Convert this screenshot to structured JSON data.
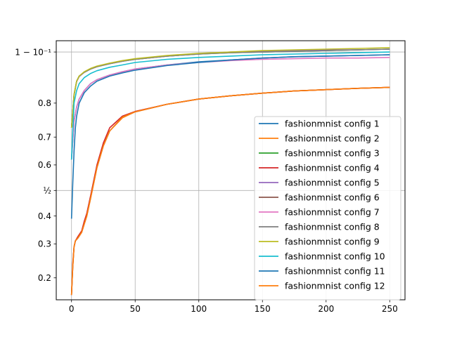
{
  "chart_data": {
    "type": "line",
    "title": "",
    "xlabel": "",
    "ylabel": "",
    "xlim": [
      -12,
      262
    ],
    "ylim": [
      0.15,
      0.915
    ],
    "y_scale": "logit",
    "grid": true,
    "legend_placement": "lower-right",
    "x_ticks": [
      0,
      50,
      100,
      150,
      200,
      250
    ],
    "x_tick_labels": [
      "0",
      "50",
      "100",
      "150",
      "200",
      "250"
    ],
    "y_ticks": [
      0.2,
      0.3,
      0.4,
      0.5,
      0.6,
      0.7,
      0.8,
      0.9
    ],
    "y_tick_labels": [
      "0.2",
      "0.3",
      "0.4",
      "½",
      "0.6",
      "0.7",
      "0.8",
      "1 − 10⁻¹"
    ],
    "y_grid_values": [
      0.5,
      0.9
    ],
    "x_grid_values": [
      0,
      50,
      100,
      150,
      200,
      250
    ],
    "series": [
      {
        "name": "fashionmnist config 1",
        "color": "#1f77b4",
        "x": [
          0,
          2,
          4,
          6,
          10,
          15,
          20,
          30,
          40,
          50,
          75,
          100,
          125,
          150,
          175,
          200,
          225,
          250
        ],
        "y": [
          0.62,
          0.75,
          0.79,
          0.81,
          0.83,
          0.845,
          0.853,
          0.862,
          0.868,
          0.873,
          0.88,
          0.885,
          0.888,
          0.891,
          0.893,
          0.894,
          0.895,
          0.896
        ]
      },
      {
        "name": "fashionmnist config 2",
        "color": "#ff7f0e",
        "x": [
          0,
          1,
          2,
          3,
          5,
          8,
          10,
          12,
          15,
          20,
          25,
          30,
          40,
          50,
          75,
          100,
          125,
          150,
          175,
          200,
          225,
          250
        ],
        "y": [
          0.16,
          0.23,
          0.29,
          0.31,
          0.32,
          0.34,
          0.37,
          0.4,
          0.47,
          0.59,
          0.67,
          0.72,
          0.76,
          0.777,
          0.797,
          0.81,
          0.818,
          0.824,
          0.829,
          0.832,
          0.835,
          0.837
        ]
      },
      {
        "name": "fashionmnist config 3",
        "color": "#2ca02c",
        "x": [
          0,
          2,
          4,
          6,
          10,
          15,
          20,
          30,
          40,
          50,
          75,
          100,
          125,
          150,
          175,
          200,
          225,
          250
        ],
        "y": [
          0.73,
          0.82,
          0.85,
          0.86,
          0.867,
          0.873,
          0.877,
          0.882,
          0.886,
          0.889,
          0.894,
          0.897,
          0.899,
          0.9,
          0.901,
          0.902,
          0.903,
          0.904
        ]
      },
      {
        "name": "fashionmnist config 4",
        "color": "#d62728",
        "x": [
          0,
          1,
          2,
          3,
          5,
          8,
          10,
          12,
          15,
          20,
          25,
          30,
          40,
          50,
          75,
          100,
          125,
          150,
          175,
          200,
          225,
          250
        ],
        "y": [
          0.16,
          0.24,
          0.29,
          0.31,
          0.325,
          0.345,
          0.38,
          0.41,
          0.48,
          0.6,
          0.68,
          0.73,
          0.765,
          0.778,
          0.797,
          0.81,
          0.818,
          0.824,
          0.829,
          0.832,
          0.835,
          0.837
        ]
      },
      {
        "name": "fashionmnist config 5",
        "color": "#9467bd",
        "x": [
          0,
          2,
          4,
          6,
          10,
          15,
          20,
          30,
          40,
          50,
          75,
          100,
          125,
          150,
          175,
          200,
          225,
          250
        ],
        "y": [
          0.73,
          0.82,
          0.849,
          0.859,
          0.867,
          0.873,
          0.877,
          0.882,
          0.886,
          0.889,
          0.894,
          0.897,
          0.9,
          0.901,
          0.902,
          0.903,
          0.903,
          0.904
        ]
      },
      {
        "name": "fashionmnist config 6",
        "color": "#8c564b",
        "x": [
          0,
          1,
          2,
          3,
          5,
          8,
          10,
          12,
          15,
          20,
          25,
          30,
          40,
          50,
          75,
          100,
          125,
          150,
          175,
          200,
          225,
          250
        ],
        "y": [
          0.16,
          0.23,
          0.29,
          0.31,
          0.32,
          0.34,
          0.37,
          0.4,
          0.47,
          0.59,
          0.67,
          0.72,
          0.762,
          0.777,
          0.797,
          0.81,
          0.818,
          0.824,
          0.829,
          0.832,
          0.835,
          0.837
        ]
      },
      {
        "name": "fashionmnist config 7",
        "color": "#e377c2",
        "x": [
          0,
          2,
          4,
          6,
          10,
          15,
          20,
          30,
          40,
          50,
          75,
          100,
          125,
          150,
          175,
          200,
          225,
          250
        ],
        "y": [
          0.62,
          0.75,
          0.79,
          0.81,
          0.83,
          0.845,
          0.853,
          0.862,
          0.868,
          0.873,
          0.88,
          0.884,
          0.887,
          0.889,
          0.89,
          0.891,
          0.891,
          0.892
        ]
      },
      {
        "name": "fashionmnist config 8",
        "color": "#7f7f7f",
        "x": [
          0,
          2,
          4,
          6,
          10,
          15,
          20,
          30,
          40,
          50,
          75,
          100,
          125,
          150,
          175,
          200,
          225,
          250
        ],
        "y": [
          0.73,
          0.82,
          0.85,
          0.86,
          0.867,
          0.873,
          0.877,
          0.882,
          0.886,
          0.889,
          0.894,
          0.897,
          0.899,
          0.9,
          0.901,
          0.902,
          0.903,
          0.904
        ]
      },
      {
        "name": "fashionmnist config 9",
        "color": "#bcbd22",
        "x": [
          0,
          2,
          4,
          6,
          10,
          15,
          20,
          30,
          40,
          50,
          75,
          100,
          125,
          150,
          175,
          200,
          225,
          250
        ],
        "y": [
          0.73,
          0.82,
          0.85,
          0.86,
          0.868,
          0.874,
          0.878,
          0.883,
          0.887,
          0.89,
          0.895,
          0.898,
          0.9,
          0.902,
          0.903,
          0.904,
          0.905,
          0.906
        ]
      },
      {
        "name": "fashionmnist config 10",
        "color": "#17becf",
        "x": [
          0,
          2,
          4,
          6,
          10,
          15,
          20,
          30,
          40,
          50,
          75,
          100,
          125,
          150,
          175,
          200,
          225,
          250
        ],
        "y": [
          0.62,
          0.8,
          0.83,
          0.845,
          0.857,
          0.865,
          0.87,
          0.876,
          0.88,
          0.884,
          0.889,
          0.892,
          0.894,
          0.896,
          0.897,
          0.898,
          0.899,
          0.9
        ]
      },
      {
        "name": "fashionmnist config 11",
        "color": "#1f77b4",
        "x": [
          0,
          1,
          2,
          3,
          4,
          6,
          10,
          15,
          20,
          30,
          40,
          50,
          75,
          100,
          125,
          150,
          175,
          200,
          225,
          250
        ],
        "y": [
          0.39,
          0.53,
          0.65,
          0.73,
          0.765,
          0.8,
          0.825,
          0.84,
          0.85,
          0.86,
          0.866,
          0.871,
          0.879,
          0.884,
          0.888,
          0.891,
          0.893,
          0.894,
          0.895,
          0.896
        ]
      },
      {
        "name": "fashionmnist config 12",
        "color": "#ff7f0e",
        "x": [
          0,
          1,
          2,
          3,
          5,
          8,
          10,
          12,
          15,
          20,
          25,
          30,
          40,
          50,
          75,
          100,
          125,
          150,
          175,
          200,
          225,
          250
        ],
        "y": [
          0.16,
          0.23,
          0.29,
          0.31,
          0.32,
          0.34,
          0.37,
          0.4,
          0.47,
          0.59,
          0.67,
          0.72,
          0.762,
          0.777,
          0.797,
          0.81,
          0.818,
          0.824,
          0.829,
          0.832,
          0.835,
          0.837
        ]
      }
    ]
  }
}
